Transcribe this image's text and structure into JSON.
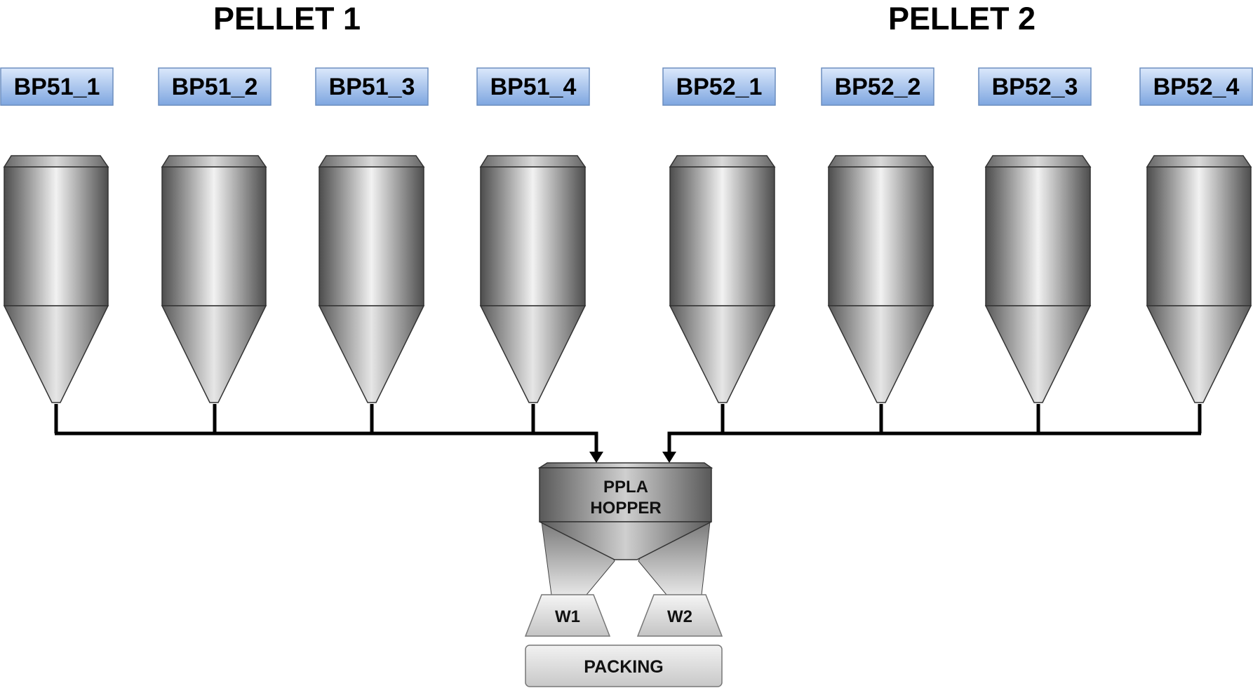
{
  "diagram": {
    "groups": [
      {
        "title": "PELLET 1",
        "silos": [
          {
            "label": "BP51_1"
          },
          {
            "label": "BP51_2"
          },
          {
            "label": "BP51_3"
          },
          {
            "label": "BP51_4"
          }
        ]
      },
      {
        "title": "PELLET 2",
        "silos": [
          {
            "label": "BP52_1"
          },
          {
            "label": "BP52_2"
          },
          {
            "label": "BP52_3"
          },
          {
            "label": "BP52_4"
          }
        ]
      }
    ],
    "hopper": {
      "line1": "PPLA",
      "line2": "HOPPER"
    },
    "weighers": [
      {
        "label": "W1"
      },
      {
        "label": "W2"
      }
    ],
    "packing": {
      "label": "PACKING"
    },
    "colors": {
      "label_top": "#dbe8fb",
      "label_bottom": "#7ea6e0",
      "label_border": "#6c8ebf",
      "metal_dark": "#4d4d4d",
      "metal_light": "#f2f2f2",
      "pipe": "#000000"
    }
  }
}
